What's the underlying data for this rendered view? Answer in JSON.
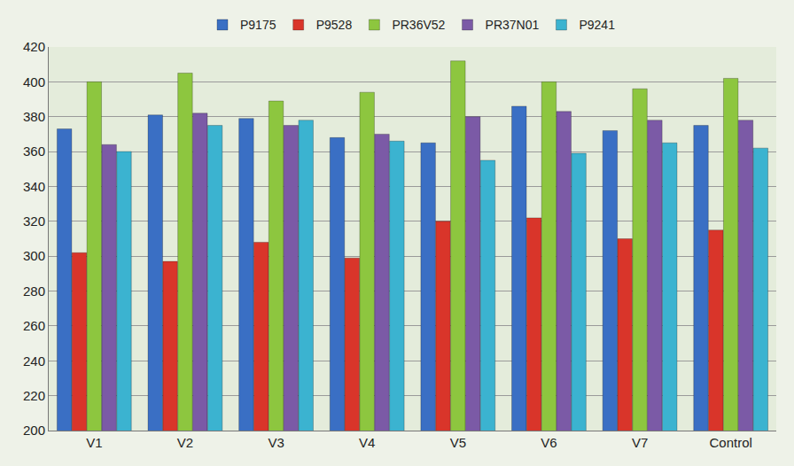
{
  "chart_data": {
    "type": "bar",
    "categories": [
      "V1",
      "V2",
      "V3",
      "V4",
      "V5",
      "V6",
      "V7",
      "Control"
    ],
    "series": [
      {
        "name": "P9175",
        "color": "#3a6fc4",
        "values": [
          373,
          381,
          379,
          368,
          365,
          386,
          372,
          375
        ]
      },
      {
        "name": "P9528",
        "color": "#d9352a",
        "values": [
          302,
          297,
          308,
          299,
          320,
          322,
          310,
          315
        ]
      },
      {
        "name": "PR36V52",
        "color": "#8dc63f",
        "values": [
          400,
          405,
          389,
          394,
          412,
          400,
          396,
          402
        ]
      },
      {
        "name": "PR37N01",
        "color": "#7b5aa6",
        "values": [
          364,
          382,
          375,
          370,
          380,
          383,
          378,
          378
        ]
      },
      {
        "name": "P9241",
        "color": "#3bb3d0",
        "values": [
          360,
          375,
          378,
          366,
          355,
          359,
          365,
          362
        ]
      }
    ],
    "ylim": [
      200,
      420
    ],
    "yticks": [
      200,
      220,
      240,
      260,
      280,
      300,
      320,
      340,
      360,
      380,
      400,
      420
    ],
    "grid": true,
    "legend": "top"
  }
}
